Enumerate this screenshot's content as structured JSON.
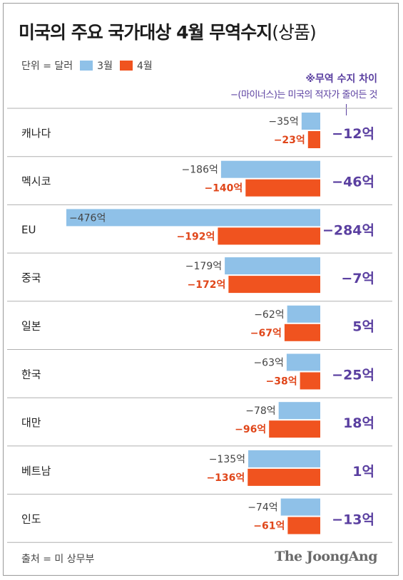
{
  "title": "미국의 주요 국가대상 4월 무역수지",
  "title_suffix": "(상품)",
  "legend": {
    "unit_label": "단위 = 달러",
    "series": [
      {
        "name": "3월",
        "color": "#8fc1e8"
      },
      {
        "name": "4월",
        "color": "#f0531f"
      }
    ]
  },
  "note": {
    "heading": "※무역 수지 차이",
    "text": "−(마이너스)는 미국의 적자가 줄어든 것"
  },
  "colors": {
    "march": "#8fc1e8",
    "april": "#f0531f",
    "difference": "#5a3fa0",
    "april_label": "#e0461a",
    "march_label": "#444444",
    "divider": "#b0b0b0"
  },
  "chart_data": {
    "type": "bar",
    "orientation": "horizontal",
    "unit": "억 달러",
    "categories": [
      "캐나다",
      "멕시코",
      "EU",
      "중국",
      "일본",
      "한국",
      "대만",
      "베트남",
      "인도"
    ],
    "series": [
      {
        "name": "3월",
        "values": [
          -35,
          -186,
          -476,
          -179,
          -62,
          -63,
          -78,
          -135,
          -74
        ],
        "labels": [
          "−35억",
          "−186억",
          "−476억",
          "−179억",
          "−62억",
          "−63억",
          "−78억",
          "−135억",
          "−74억"
        ]
      },
      {
        "name": "4월",
        "values": [
          -23,
          -140,
          -192,
          -172,
          -67,
          -38,
          -96,
          -136,
          -61
        ],
        "labels": [
          "−23억",
          "−140억",
          "−192억",
          "−172억",
          "−67억",
          "−38억",
          "−96억",
          "−136억",
          "−61억"
        ]
      }
    ],
    "difference": {
      "values": [
        -12,
        -46,
        -284,
        -7,
        5,
        -25,
        18,
        1,
        -13
      ],
      "labels": [
        "−12억",
        "−46억",
        "−284억",
        "−7억",
        "5억",
        "−25억",
        "18억",
        "1억",
        "−13억"
      ]
    },
    "xlim": [
      -476,
      0
    ],
    "grid": false
  },
  "footer": {
    "source": "출처 = 미 상무부",
    "logo": "The JoongAng"
  }
}
